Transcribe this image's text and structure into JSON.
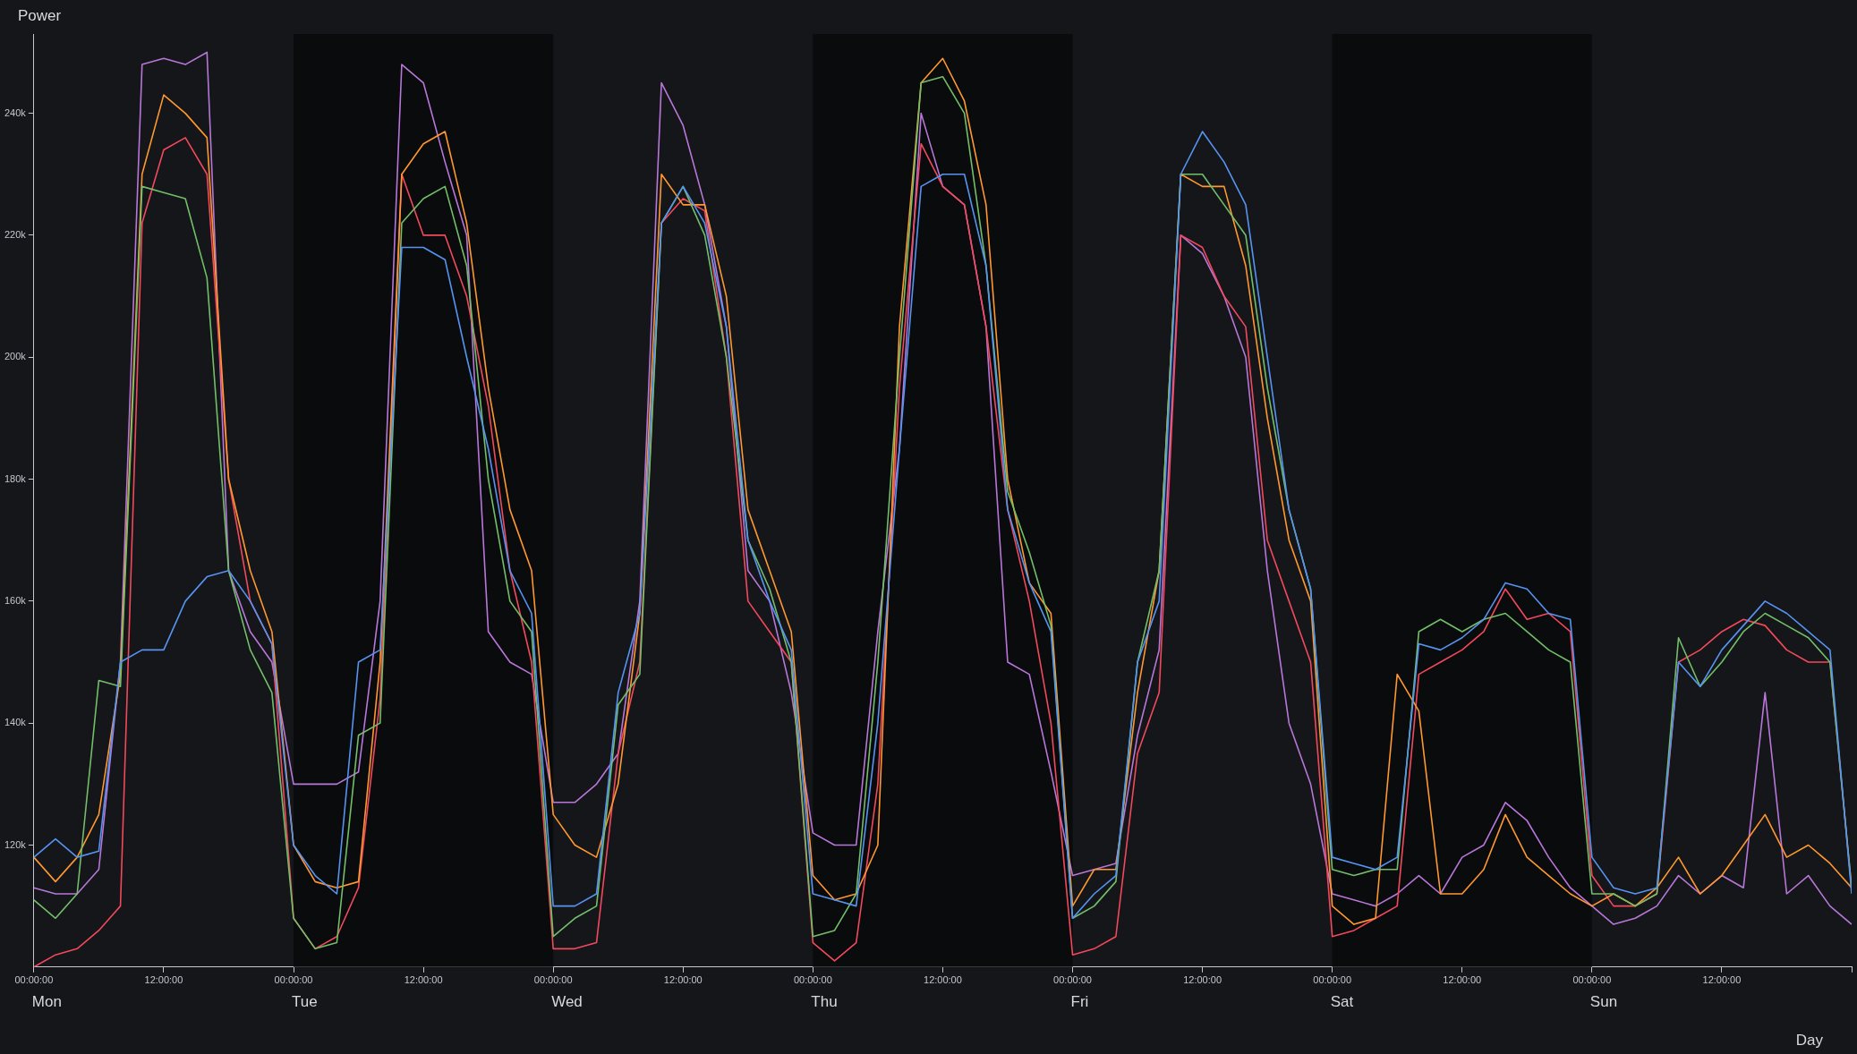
{
  "chart_data": {
    "type": "line",
    "ylabel": "Power",
    "xlabel": "Day",
    "x": [
      "--01-01T00:00",
      "--01-01T02:00",
      "--01-01T04:00",
      "--01-01T06:00",
      "--01-01T08:00",
      "--01-01T10:00",
      "--01-01T12:00",
      "--01-01T14:00",
      "--01-01T16:00",
      "--01-01T18:00",
      "--01-01T20:00",
      "--01-01T22:00",
      "--01-02T00:00",
      "--01-02T02:00",
      "--01-02T04:00",
      "--01-02T06:00",
      "--01-02T08:00",
      "--01-02T10:00",
      "--01-02T12:00",
      "--01-02T14:00",
      "--01-02T16:00",
      "--01-02T18:00",
      "--01-02T20:00",
      "--01-02T22:00",
      "--01-03T00:00",
      "--01-03T02:00",
      "--01-03T04:00",
      "--01-03T06:00",
      "--01-03T08:00",
      "--01-03T10:00",
      "--01-03T12:00",
      "--01-03T14:00",
      "--01-03T16:00",
      "--01-03T18:00",
      "--01-03T20:00",
      "--01-03T22:00",
      "--01-04T00:00",
      "--01-04T02:00",
      "--01-04T04:00",
      "--01-04T06:00",
      "--01-04T08:00",
      "--01-04T10:00",
      "--01-04T12:00",
      "--01-04T14:00",
      "--01-04T16:00",
      "--01-04T18:00",
      "--01-04T20:00",
      "--01-04T22:00",
      "--01-05T00:00",
      "--01-05T02:00",
      "--01-05T04:00",
      "--01-05T06:00",
      "--01-05T08:00",
      "--01-05T10:00",
      "--01-05T12:00",
      "--01-05T14:00",
      "--01-05T16:00",
      "--01-05T18:00",
      "--01-05T20:00",
      "--01-05T22:00",
      "--01-06T00:00",
      "--01-06T02:00",
      "--01-06T04:00",
      "--01-06T06:00",
      "--01-06T08:00",
      "--01-06T10:00",
      "--01-06T12:00",
      "--01-06T14:00",
      "--01-06T16:00",
      "--01-06T18:00",
      "--01-06T20:00",
      "--01-06T22:00",
      "--01-07T00:00",
      "--01-07T02:00",
      "--01-07T04:00",
      "--01-07T06:00",
      "--01-07T08:00",
      "--01-07T10:00",
      "--01-07T12:00",
      "--01-07T14:00",
      "--01-07T16:00",
      "--01-07T18:00",
      "--01-07T20:00",
      "--01-07T22:00",
      "--01-08T00:00"
    ],
    "xlim": [
      "--01-01T00:00",
      "--01-08T00:00"
    ],
    "xticks": [
      {
        "value": "--01-01T00:00",
        "label": "00:00:00"
      },
      {
        "value": "--01-01T12:00",
        "label": "12:00:00"
      },
      {
        "value": "--01-02T00:00",
        "label": "00:00:00"
      },
      {
        "value": "--01-02T12:00",
        "label": "12:00:00"
      },
      {
        "value": "--01-03T00:00",
        "label": "00:00:00"
      },
      {
        "value": "--01-03T12:00",
        "label": "12:00:00"
      },
      {
        "value": "--01-04T00:00",
        "label": "00:00:00"
      },
      {
        "value": "--01-04T12:00",
        "label": "12:00:00"
      },
      {
        "value": "--01-05T00:00",
        "label": "00:00:00"
      },
      {
        "value": "--01-05T12:00",
        "label": "12:00:00"
      },
      {
        "value": "--01-06T00:00",
        "label": "00:00:00"
      },
      {
        "value": "--01-06T12:00",
        "label": "12:00:00"
      },
      {
        "value": "--01-07T00:00",
        "label": "00:00:00"
      },
      {
        "value": "--01-07T12:00",
        "label": "12:00:00"
      },
      {
        "value": "--01-08T00:00",
        "label": null
      }
    ],
    "annotations": [
      "Mon",
      "Tue",
      "Wed",
      "Thu",
      "Fri",
      "Sat",
      "Sun"
    ],
    "ylim": [
      100000,
      253000
    ],
    "yticks": [
      {
        "value": 120000,
        "label": "120k"
      },
      {
        "value": 140000,
        "label": "140k"
      },
      {
        "value": 160000,
        "label": "160k"
      },
      {
        "value": 180000,
        "label": "180k"
      },
      {
        "value": 200000,
        "label": "200k"
      },
      {
        "value": 220000,
        "label": "220k"
      },
      {
        "value": 240000,
        "label": "240k"
      }
    ],
    "marker": "none",
    "line_style": "solid",
    "bands": [
      {
        "axis": "x",
        "from": "--01-02T00:00",
        "to": "--01-03T00:00",
        "color": "#0a0b0d"
      },
      {
        "axis": "x",
        "from": "--01-04T00:00",
        "to": "--01-05T00:00",
        "color": "#0a0b0d"
      },
      {
        "axis": "x",
        "from": "--01-06T00:00",
        "to": "--01-07T00:00",
        "color": "#0a0b0d"
      }
    ],
    "series": [
      {
        "color": "#5794f2",
        "values": [
          118000,
          121000,
          118000,
          119000,
          150000,
          152000,
          152000,
          160000,
          164000,
          165000,
          160000,
          153000,
          120000,
          115000,
          112000,
          150000,
          152000,
          218000,
          218000,
          216000,
          200000,
          185000,
          165000,
          158000,
          110000,
          110000,
          112000,
          145000,
          158000,
          222000,
          228000,
          222000,
          205000,
          170000,
          160000,
          152000,
          112000,
          111000,
          110000,
          140000,
          185000,
          228000,
          230000,
          230000,
          215000,
          175000,
          163000,
          155000,
          108000,
          112000,
          115000,
          150000,
          160000,
          230000,
          237000,
          232000,
          225000,
          200000,
          175000,
          162000,
          118000,
          117000,
          116000,
          118000,
          153000,
          152000,
          154000,
          157000,
          163000,
          162000,
          158000,
          157000,
          118000,
          113000,
          112000,
          113000,
          150000,
          146000,
          152000,
          156000,
          160000,
          158000,
          155000,
          152000,
          112000
        ]
      },
      {
        "color": "#73bf69",
        "values": [
          111000,
          108000,
          112000,
          147000,
          146000,
          228000,
          227000,
          226000,
          213000,
          165000,
          152000,
          145000,
          108000,
          103000,
          104000,
          138000,
          140000,
          222000,
          226000,
          228000,
          215000,
          180000,
          160000,
          155000,
          105000,
          108000,
          110000,
          143000,
          148000,
          222000,
          228000,
          220000,
          200000,
          170000,
          162000,
          150000,
          105000,
          106000,
          112000,
          150000,
          200000,
          245000,
          246000,
          240000,
          215000,
          178000,
          168000,
          156000,
          108000,
          110000,
          114000,
          150000,
          165000,
          230000,
          230000,
          225000,
          220000,
          195000,
          175000,
          162000,
          116000,
          115000,
          116000,
          116000,
          155000,
          157000,
          155000,
          157000,
          158000,
          155000,
          152000,
          150000,
          112000,
          112000,
          110000,
          112000,
          154000,
          146000,
          150000,
          155000,
          158000,
          156000,
          154000,
          150000,
          113000
        ]
      },
      {
        "color": "#ff9830",
        "values": [
          118000,
          114000,
          118000,
          125000,
          148000,
          230000,
          243000,
          240000,
          236000,
          180000,
          165000,
          155000,
          120000,
          114000,
          113000,
          114000,
          150000,
          230000,
          235000,
          237000,
          222000,
          195000,
          175000,
          165000,
          125000,
          120000,
          118000,
          130000,
          158000,
          230000,
          225000,
          225000,
          210000,
          175000,
          165000,
          155000,
          115000,
          111000,
          112000,
          120000,
          205000,
          245000,
          249000,
          242000,
          225000,
          180000,
          163000,
          158000,
          110000,
          116000,
          116000,
          145000,
          165000,
          230000,
          228000,
          228000,
          215000,
          190000,
          170000,
          160000,
          110000,
          107000,
          108000,
          148000,
          142000,
          112000,
          112000,
          116000,
          125000,
          118000,
          115000,
          112000,
          110000,
          112000,
          110000,
          113000,
          118000,
          112000,
          115000,
          120000,
          125000,
          118000,
          120000,
          117000,
          113000
        ]
      },
      {
        "color": "#f2495c",
        "values": [
          100000,
          102000,
          103000,
          106000,
          110000,
          222000,
          234000,
          236000,
          230000,
          180000,
          160000,
          153000,
          108000,
          103000,
          105000,
          113000,
          144000,
          230000,
          220000,
          220000,
          210000,
          192000,
          165000,
          150000,
          103000,
          103000,
          104000,
          135000,
          150000,
          222000,
          226000,
          224000,
          200000,
          160000,
          155000,
          150000,
          104000,
          101000,
          104000,
          130000,
          195000,
          235000,
          228000,
          225000,
          205000,
          175000,
          160000,
          140000,
          102000,
          103000,
          105000,
          135000,
          145000,
          220000,
          218000,
          210000,
          205000,
          170000,
          160000,
          150000,
          105000,
          106000,
          108000,
          110000,
          148000,
          150000,
          152000,
          155000,
          162000,
          157000,
          158000,
          155000,
          115000,
          110000,
          110000,
          112000,
          150000,
          152000,
          155000,
          157000,
          156000,
          152000,
          150000,
          150000,
          113000
        ]
      },
      {
        "color": "#b877d9",
        "values": [
          113000,
          112000,
          112000,
          116000,
          150000,
          248000,
          249000,
          248000,
          250000,
          165000,
          155000,
          150000,
          130000,
          130000,
          130000,
          132000,
          160000,
          248000,
          245000,
          232000,
          220000,
          155000,
          150000,
          148000,
          127000,
          127000,
          130000,
          135000,
          160000,
          245000,
          238000,
          225000,
          205000,
          165000,
          160000,
          145000,
          122000,
          120000,
          120000,
          155000,
          185000,
          240000,
          228000,
          225000,
          205000,
          150000,
          148000,
          132000,
          115000,
          116000,
          117000,
          138000,
          152000,
          220000,
          217000,
          210000,
          200000,
          165000,
          140000,
          130000,
          112000,
          111000,
          110000,
          112000,
          115000,
          112000,
          118000,
          120000,
          127000,
          124000,
          118000,
          113000,
          110000,
          107000,
          108000,
          110000,
          115000,
          112000,
          115000,
          113000,
          145000,
          112000,
          115000,
          110000,
          107000
        ]
      }
    ]
  }
}
